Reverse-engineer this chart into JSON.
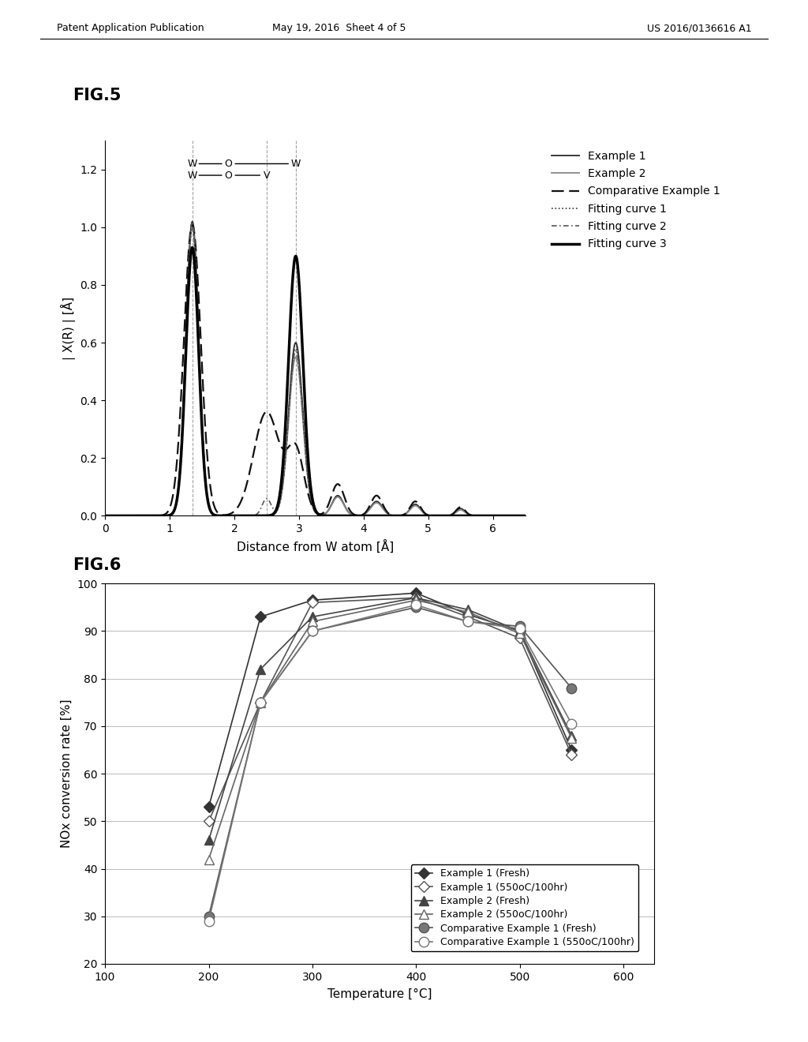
{
  "header_left": "Patent Application Publication",
  "header_mid": "May 19, 2016  Sheet 4 of 5",
  "header_right": "US 2016/0136616 A1",
  "fig5_title": "FIG.5",
  "fig5_ylabel": "| X(R) | [Å]",
  "fig5_xlabel": "Distance from W atom [Å]",
  "fig5_xlim": [
    0,
    6.5
  ],
  "fig5_ylim": [
    0,
    1.3
  ],
  "fig5_yticks": [
    0,
    0.2,
    0.4,
    0.6,
    0.8,
    1.0,
    1.2
  ],
  "fig5_xticks": [
    0,
    1,
    2,
    3,
    4,
    5,
    6
  ],
  "fig5_vlines": [
    1.35,
    2.5,
    2.95
  ],
  "fig5_legend": [
    "Example 1",
    "Example 2",
    "Comparative Example 1",
    "Fitting curve 1",
    "Fitting curve 2",
    "Fitting curve 3"
  ],
  "fig6_title": "FIG.6",
  "fig6_ylabel": "NOx conversion rate [%]",
  "fig6_xlabel": "Temperature [°C]",
  "fig6_xlim": [
    100,
    630
  ],
  "fig6_ylim": [
    20,
    100
  ],
  "fig6_yticks": [
    20.0,
    30.0,
    40.0,
    50.0,
    60.0,
    70.0,
    80.0,
    90.0,
    100.0
  ],
  "fig6_xticks": [
    100,
    200,
    300,
    400,
    500,
    600
  ],
  "ex1_fresh_x": [
    200,
    250,
    300,
    400,
    450,
    500,
    550
  ],
  "ex1_fresh_y": [
    53.0,
    93.0,
    96.5,
    98.0,
    93.5,
    90.0,
    65.0
  ],
  "ex1_aged_x": [
    200,
    250,
    300,
    400,
    450,
    500,
    550
  ],
  "ex1_aged_y": [
    50.0,
    75.0,
    96.0,
    97.0,
    93.0,
    88.5,
    64.0
  ],
  "ex2_fresh_x": [
    200,
    250,
    300,
    400,
    450,
    500,
    550
  ],
  "ex2_fresh_y": [
    46.0,
    82.0,
    93.0,
    97.0,
    94.5,
    90.0,
    68.0
  ],
  "ex2_aged_x": [
    200,
    250,
    300,
    400,
    450,
    500,
    550
  ],
  "ex2_aged_y": [
    42.0,
    75.0,
    92.0,
    96.5,
    94.0,
    89.5,
    67.5
  ],
  "comp1_fresh_x": [
    200,
    250,
    300,
    400,
    450,
    500,
    550
  ],
  "comp1_fresh_y": [
    30.0,
    75.0,
    90.0,
    95.0,
    92.0,
    91.0,
    78.0
  ],
  "comp1_aged_x": [
    200,
    250,
    300,
    400,
    450,
    500,
    550
  ],
  "comp1_aged_y": [
    29.0,
    75.0,
    90.0,
    95.5,
    92.0,
    90.5,
    70.5
  ],
  "fig6_legend": [
    "Example 1 (Fresh)",
    "Example 1 (550oC/100hr)",
    "Example 2 (Fresh)",
    "Example 2 (550oC/100hr)",
    "Comparative Example 1 (Fresh)",
    "Comparative Example 1 (550oC/100hr)"
  ],
  "ann_row1": [
    "W",
    "O",
    "W"
  ],
  "ann_row2": [
    "W",
    "O",
    "V"
  ]
}
